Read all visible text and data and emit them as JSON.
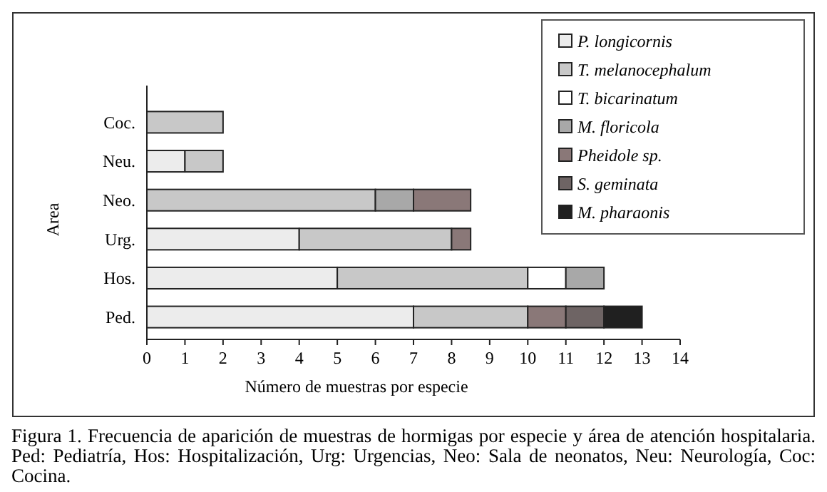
{
  "chart_data": {
    "type": "bar",
    "orientation": "horizontal",
    "stacked": true,
    "xlabel": "Número de muestras por especie",
    "ylabel": "Area",
    "categories": [
      "Coc.",
      "Neu.",
      "Neo.",
      "Urg.",
      "Hos.",
      "Ped."
    ],
    "series": [
      {
        "name": "P. longicornis",
        "color": "#ececec",
        "values": [
          0,
          1,
          0,
          4,
          5,
          7
        ]
      },
      {
        "name": "T. melanocephalum",
        "color": "#c8c8c8",
        "values": [
          2,
          1,
          6,
          4,
          5,
          3
        ]
      },
      {
        "name": "T. bicarinatum",
        "color": "#ffffff",
        "values": [
          0,
          0,
          0,
          0,
          1,
          0
        ]
      },
      {
        "name": "M. floricola",
        "color": "#a8a8a8",
        "values": [
          0,
          0,
          1,
          0,
          1,
          0
        ]
      },
      {
        "name": "Pheidole sp.",
        "color": "#8a7878",
        "values": [
          0,
          0,
          1.5,
          0.5,
          0,
          1
        ]
      },
      {
        "name": "S. geminata",
        "color": "#6e6464",
        "values": [
          0,
          0,
          0,
          0,
          0,
          1
        ]
      },
      {
        "name": "M. pharaonis",
        "color": "#202020",
        "values": [
          0,
          0,
          0,
          0,
          0,
          1
        ]
      }
    ],
    "xlim": [
      0,
      14
    ],
    "xticks": [
      0,
      1,
      2,
      3,
      4,
      5,
      6,
      7,
      8,
      9,
      10,
      11,
      12,
      13,
      14
    ],
    "legend": "top right",
    "grid": false,
    "annotations": [
      "Figura 1. Frecuencia de aparición de muestras de hormigas por especie y área de atención hospitalaria. Ped: Pediatría, Hos: Hospitalización, Urg: Urgencias, Neo: Sala de neonatos, Neu: Neurología, Coc: Cocina."
    ]
  }
}
